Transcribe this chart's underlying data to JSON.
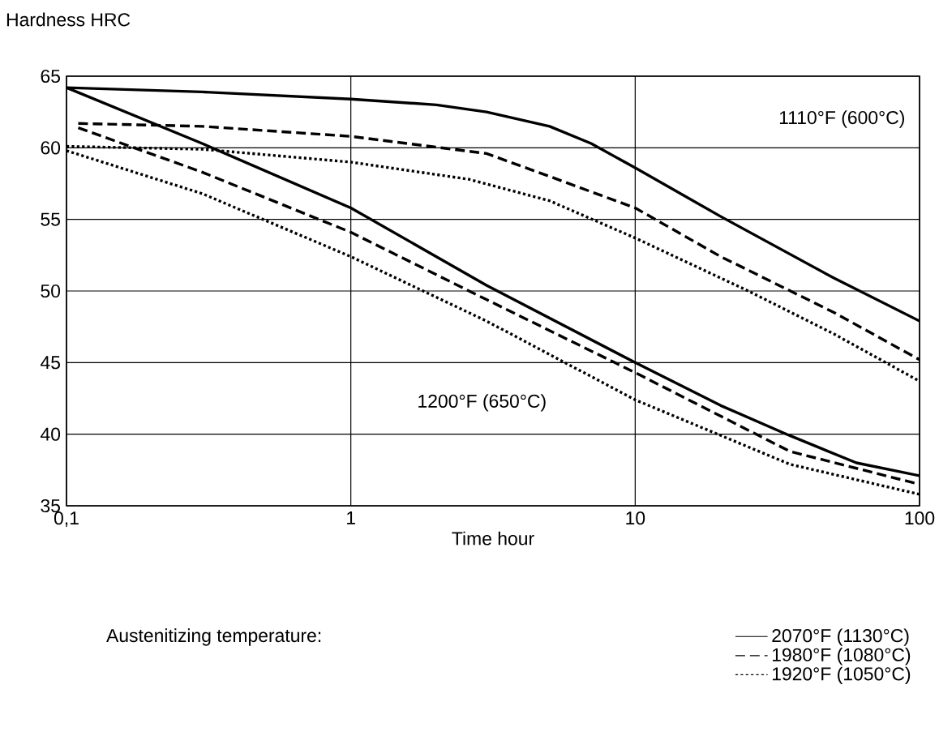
{
  "chart_data": {
    "type": "line",
    "ylabel": "Hardness HRC",
    "xlabel": "Time hour",
    "legend_title": "Austenitizing temperature:",
    "log": "x",
    "grid": true,
    "legend": "bottom right",
    "xlim": [
      0.1,
      100
    ],
    "ylim": [
      35,
      65
    ],
    "xticks": [
      {
        "value": 0.1,
        "label": "0,1"
      },
      1,
      10,
      100
    ],
    "yticks": [
      35,
      40,
      45,
      50,
      55,
      60,
      65
    ],
    "annotations": [
      "1110°F (600°C)",
      "1200°F (650°C)"
    ],
    "series": [
      {
        "name": "2070°F (1130°C)",
        "color": "#000000",
        "line_style": "solid",
        "x": [
          0.1,
          0.3,
          1,
          2,
          3,
          5,
          7,
          10,
          20,
          50,
          100
        ],
        "values": [
          64.2,
          63.9,
          63.4,
          63.0,
          62.5,
          61.5,
          60.3,
          58.6,
          55.2,
          50.9,
          47.9
        ]
      },
      {
        "name": "1980°F (1080°C)",
        "color": "#000000",
        "line_style": "dashed",
        "x": [
          0.11,
          0.3,
          1,
          3,
          5,
          10,
          20,
          50,
          100
        ],
        "values": [
          61.7,
          61.5,
          60.8,
          59.6,
          58.0,
          55.8,
          52.4,
          48.5,
          45.2
        ]
      },
      {
        "name": "1920°F (1050°C)",
        "color": "#000000",
        "line_style": "dotted",
        "x": [
          0.1,
          0.3,
          1,
          2.6,
          5,
          10,
          25,
          50,
          100
        ],
        "values": [
          60.1,
          59.9,
          59.0,
          57.8,
          56.3,
          53.7,
          50.0,
          47.0,
          43.7
        ]
      },
      {
        "color": "#000000",
        "line_style": "solid",
        "x": [
          0.1,
          0.3,
          1,
          3,
          10,
          20,
          35,
          60,
          100
        ],
        "values": [
          64.2,
          60.3,
          55.8,
          50.4,
          45.0,
          42.0,
          39.9,
          38.0,
          37.1
        ]
      },
      {
        "color": "#000000",
        "line_style": "dashed",
        "x": [
          0.11,
          0.3,
          1,
          3,
          10,
          35,
          100
        ],
        "values": [
          61.4,
          58.3,
          54.1,
          49.4,
          44.3,
          38.8,
          36.5
        ]
      },
      {
        "color": "#000000",
        "line_style": "dotted",
        "x": [
          0.1,
          0.3,
          1,
          3,
          10,
          35,
          100
        ],
        "values": [
          59.8,
          56.8,
          52.4,
          47.9,
          42.4,
          37.9,
          35.8
        ]
      }
    ]
  }
}
